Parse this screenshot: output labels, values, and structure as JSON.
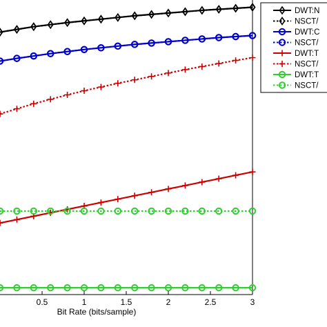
{
  "chart_data": {
    "type": "line",
    "title": "",
    "xlabel": "Bit Rate (bits/sample)",
    "ylabel": "",
    "xlim": [
      0,
      3
    ],
    "ylim": [
      0,
      8.4
    ],
    "xticks": [
      "0.5",
      "1",
      "1.5",
      "2",
      "2.5",
      "3"
    ],
    "xtick_values": [
      0.5,
      1,
      1.5,
      2,
      2.5,
      3
    ],
    "grid": false,
    "legend_position": "top-right",
    "x": [
      0,
      0.2,
      0.4,
      0.6,
      0.8,
      1.0,
      1.2,
      1.4,
      1.6,
      1.8,
      2.0,
      2.2,
      2.4,
      2.6,
      2.8,
      3.0
    ],
    "series": [
      {
        "name": "DWT:N",
        "color": "#000000",
        "dashed": false,
        "marker": "diamond",
        "values": [
          7.7,
          7.78,
          7.86,
          7.92,
          7.98,
          8.03,
          8.08,
          8.13,
          8.18,
          8.22,
          8.26,
          8.3,
          8.34,
          8.37,
          8.4,
          8.43
        ]
      },
      {
        "name": "NSCT/",
        "color": "#000000",
        "dashed": true,
        "marker": "diamond",
        "values": [
          7.7,
          7.78,
          7.86,
          7.92,
          7.98,
          8.03,
          8.08,
          8.13,
          8.18,
          8.22,
          8.26,
          8.3,
          8.34,
          8.37,
          8.4,
          8.43
        ]
      },
      {
        "name": "DWT:C",
        "color": "#0000cc",
        "dashed": false,
        "marker": "circle",
        "values": [
          6.85,
          6.93,
          7.0,
          7.07,
          7.13,
          7.19,
          7.24,
          7.29,
          7.34,
          7.38,
          7.42,
          7.46,
          7.5,
          7.54,
          7.57,
          7.6
        ]
      },
      {
        "name": "NSCT/",
        "color": "#0000cc",
        "dashed": true,
        "marker": "circle",
        "values": [
          6.85,
          6.93,
          7.0,
          7.07,
          7.13,
          7.19,
          7.24,
          7.29,
          7.34,
          7.38,
          7.42,
          7.46,
          7.5,
          7.54,
          7.57,
          7.6
        ]
      },
      {
        "name": "DWT:T",
        "color": "#cc0000",
        "dashed": false,
        "marker": "plus",
        "values": [
          2.1,
          2.2,
          2.3,
          2.4,
          2.5,
          2.6,
          2.7,
          2.8,
          2.9,
          3.0,
          3.1,
          3.2,
          3.3,
          3.4,
          3.5,
          3.6
        ]
      },
      {
        "name": "NSCT/",
        "color": "#cc0000",
        "dashed": true,
        "marker": "plus",
        "values": [
          5.3,
          5.45,
          5.6,
          5.73,
          5.86,
          5.98,
          6.09,
          6.2,
          6.3,
          6.4,
          6.5,
          6.6,
          6.69,
          6.78,
          6.87,
          6.95
        ]
      },
      {
        "name": "DWT:T",
        "color": "#33cc33",
        "dashed": false,
        "marker": "circle",
        "values": [
          0.2,
          0.2,
          0.2,
          0.2,
          0.2,
          0.2,
          0.2,
          0.2,
          0.2,
          0.2,
          0.2,
          0.2,
          0.2,
          0.2,
          0.2,
          0.2
        ]
      },
      {
        "name": "NSCT/",
        "color": "#33cc33",
        "dashed": true,
        "marker": "circle",
        "values": [
          2.45,
          2.45,
          2.45,
          2.45,
          2.45,
          2.45,
          2.45,
          2.45,
          2.45,
          2.45,
          2.45,
          2.45,
          2.45,
          2.45,
          2.45,
          2.45
        ]
      }
    ]
  }
}
